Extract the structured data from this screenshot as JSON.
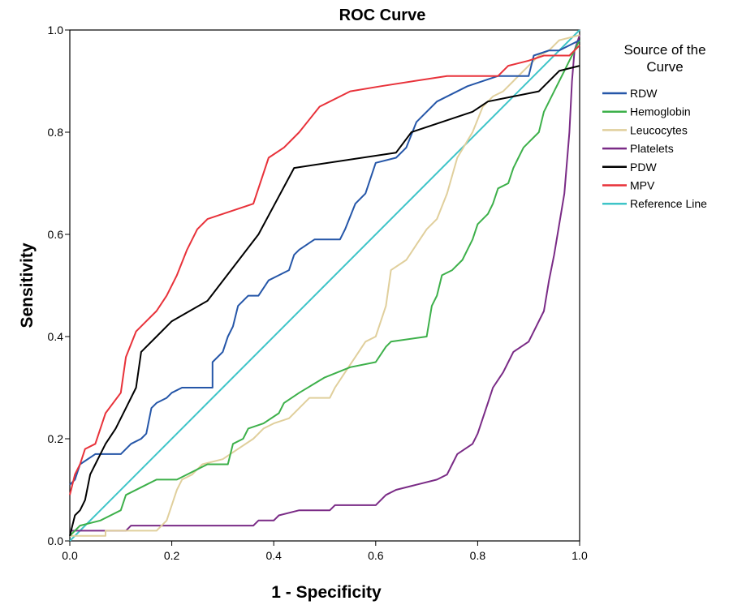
{
  "chart_data": {
    "type": "line",
    "title": "ROC Curve",
    "xlabel": "1 - Specificity",
    "ylabel": "Sensitivity",
    "xlim": [
      0,
      1
    ],
    "ylim": [
      0,
      1
    ],
    "xticks": [
      "0.0",
      "0.2",
      "0.4",
      "0.6",
      "0.8",
      "1.0"
    ],
    "yticks": [
      "0.0",
      "0.2",
      "0.4",
      "0.6",
      "0.8",
      "1.0"
    ],
    "grid": false,
    "legend": {
      "title_lines": [
        "Source of the",
        "Curve"
      ],
      "placement": "right"
    },
    "series": [
      {
        "name": "RDW",
        "color": "#2556a8",
        "points": [
          [
            0,
            0.11
          ],
          [
            0.01,
            0.12
          ],
          [
            0.02,
            0.15
          ],
          [
            0.05,
            0.17
          ],
          [
            0.1,
            0.17
          ],
          [
            0.12,
            0.19
          ],
          [
            0.14,
            0.2
          ],
          [
            0.15,
            0.21
          ],
          [
            0.16,
            0.26
          ],
          [
            0.17,
            0.27
          ],
          [
            0.19,
            0.28
          ],
          [
            0.2,
            0.29
          ],
          [
            0.22,
            0.3
          ],
          [
            0.28,
            0.3
          ],
          [
            0.28,
            0.35
          ],
          [
            0.3,
            0.37
          ],
          [
            0.31,
            0.4
          ],
          [
            0.32,
            0.42
          ],
          [
            0.33,
            0.46
          ],
          [
            0.35,
            0.48
          ],
          [
            0.37,
            0.48
          ],
          [
            0.39,
            0.51
          ],
          [
            0.41,
            0.52
          ],
          [
            0.43,
            0.53
          ],
          [
            0.44,
            0.56
          ],
          [
            0.45,
            0.57
          ],
          [
            0.48,
            0.59
          ],
          [
            0.53,
            0.59
          ],
          [
            0.54,
            0.61
          ],
          [
            0.56,
            0.66
          ],
          [
            0.58,
            0.68
          ],
          [
            0.6,
            0.74
          ],
          [
            0.64,
            0.75
          ],
          [
            0.66,
            0.77
          ],
          [
            0.68,
            0.82
          ],
          [
            0.72,
            0.86
          ],
          [
            0.78,
            0.89
          ],
          [
            0.84,
            0.91
          ],
          [
            0.9,
            0.91
          ],
          [
            0.91,
            0.95
          ],
          [
            0.94,
            0.96
          ],
          [
            0.96,
            0.96
          ],
          [
            0.98,
            0.97
          ],
          [
            1,
            0.98
          ]
        ]
      },
      {
        "name": "Hemoglobin",
        "color": "#3db04a",
        "points": [
          [
            0,
            0.01
          ],
          [
            0.02,
            0.03
          ],
          [
            0.06,
            0.04
          ],
          [
            0.1,
            0.06
          ],
          [
            0.11,
            0.09
          ],
          [
            0.15,
            0.11
          ],
          [
            0.17,
            0.12
          ],
          [
            0.21,
            0.12
          ],
          [
            0.23,
            0.13
          ],
          [
            0.27,
            0.15
          ],
          [
            0.31,
            0.15
          ],
          [
            0.32,
            0.19
          ],
          [
            0.34,
            0.2
          ],
          [
            0.35,
            0.22
          ],
          [
            0.38,
            0.23
          ],
          [
            0.41,
            0.25
          ],
          [
            0.42,
            0.27
          ],
          [
            0.45,
            0.29
          ],
          [
            0.5,
            0.32
          ],
          [
            0.55,
            0.34
          ],
          [
            0.6,
            0.35
          ],
          [
            0.62,
            0.38
          ],
          [
            0.63,
            0.39
          ],
          [
            0.7,
            0.4
          ],
          [
            0.71,
            0.46
          ],
          [
            0.72,
            0.48
          ],
          [
            0.73,
            0.52
          ],
          [
            0.75,
            0.53
          ],
          [
            0.77,
            0.55
          ],
          [
            0.78,
            0.57
          ],
          [
            0.79,
            0.59
          ],
          [
            0.8,
            0.62
          ],
          [
            0.82,
            0.64
          ],
          [
            0.83,
            0.66
          ],
          [
            0.84,
            0.69
          ],
          [
            0.86,
            0.7
          ],
          [
            0.87,
            0.73
          ],
          [
            0.88,
            0.75
          ],
          [
            0.89,
            0.77
          ],
          [
            0.9,
            0.78
          ],
          [
            0.92,
            0.8
          ],
          [
            0.93,
            0.84
          ],
          [
            0.94,
            0.86
          ],
          [
            0.95,
            0.88
          ],
          [
            0.96,
            0.9
          ],
          [
            0.97,
            0.92
          ],
          [
            0.98,
            0.94
          ],
          [
            0.99,
            0.96
          ],
          [
            1,
            0.98
          ]
        ]
      },
      {
        "name": "Leucocytes",
        "color": "#e0cf9c",
        "points": [
          [
            0,
            0.01
          ],
          [
            0.07,
            0.01
          ],
          [
            0.07,
            0.02
          ],
          [
            0.17,
            0.02
          ],
          [
            0.19,
            0.04
          ],
          [
            0.2,
            0.07
          ],
          [
            0.21,
            0.1
          ],
          [
            0.22,
            0.12
          ],
          [
            0.24,
            0.13
          ],
          [
            0.26,
            0.15
          ],
          [
            0.3,
            0.16
          ],
          [
            0.33,
            0.18
          ],
          [
            0.36,
            0.2
          ],
          [
            0.38,
            0.22
          ],
          [
            0.4,
            0.23
          ],
          [
            0.43,
            0.24
          ],
          [
            0.45,
            0.26
          ],
          [
            0.47,
            0.28
          ],
          [
            0.51,
            0.28
          ],
          [
            0.52,
            0.3
          ],
          [
            0.54,
            0.33
          ],
          [
            0.56,
            0.36
          ],
          [
            0.58,
            0.39
          ],
          [
            0.6,
            0.4
          ],
          [
            0.61,
            0.43
          ],
          [
            0.62,
            0.46
          ],
          [
            0.63,
            0.53
          ],
          [
            0.66,
            0.55
          ],
          [
            0.68,
            0.58
          ],
          [
            0.7,
            0.61
          ],
          [
            0.72,
            0.63
          ],
          [
            0.74,
            0.68
          ],
          [
            0.76,
            0.75
          ],
          [
            0.79,
            0.8
          ],
          [
            0.81,
            0.85
          ],
          [
            0.83,
            0.87
          ],
          [
            0.85,
            0.88
          ],
          [
            0.87,
            0.9
          ],
          [
            0.88,
            0.91
          ],
          [
            0.9,
            0.93
          ],
          [
            0.92,
            0.95
          ],
          [
            0.94,
            0.96
          ],
          [
            0.96,
            0.98
          ],
          [
            1,
            0.99
          ]
        ]
      },
      {
        "name": "Platelets",
        "color": "#7a2b86",
        "points": [
          [
            0,
            0.02
          ],
          [
            0.11,
            0.02
          ],
          [
            0.12,
            0.03
          ],
          [
            0.36,
            0.03
          ],
          [
            0.37,
            0.04
          ],
          [
            0.4,
            0.04
          ],
          [
            0.41,
            0.05
          ],
          [
            0.45,
            0.06
          ],
          [
            0.51,
            0.06
          ],
          [
            0.52,
            0.07
          ],
          [
            0.6,
            0.07
          ],
          [
            0.62,
            0.09
          ],
          [
            0.64,
            0.1
          ],
          [
            0.68,
            0.11
          ],
          [
            0.72,
            0.12
          ],
          [
            0.74,
            0.13
          ],
          [
            0.75,
            0.15
          ],
          [
            0.76,
            0.17
          ],
          [
            0.79,
            0.19
          ],
          [
            0.8,
            0.21
          ],
          [
            0.81,
            0.24
          ],
          [
            0.82,
            0.27
          ],
          [
            0.83,
            0.3
          ],
          [
            0.85,
            0.33
          ],
          [
            0.86,
            0.35
          ],
          [
            0.87,
            0.37
          ],
          [
            0.9,
            0.39
          ],
          [
            0.91,
            0.41
          ],
          [
            0.93,
            0.45
          ],
          [
            0.94,
            0.51
          ],
          [
            0.95,
            0.56
          ],
          [
            0.96,
            0.62
          ],
          [
            0.97,
            0.68
          ],
          [
            0.98,
            0.8
          ],
          [
            0.985,
            0.9
          ],
          [
            0.99,
            0.96
          ],
          [
            1,
            0.99
          ]
        ]
      },
      {
        "name": "PDW",
        "color": "#000000",
        "points": [
          [
            0,
            0.01
          ],
          [
            0.01,
            0.05
          ],
          [
            0.02,
            0.06
          ],
          [
            0.03,
            0.08
          ],
          [
            0.04,
            0.13
          ],
          [
            0.05,
            0.15
          ],
          [
            0.07,
            0.19
          ],
          [
            0.09,
            0.22
          ],
          [
            0.11,
            0.26
          ],
          [
            0.13,
            0.3
          ],
          [
            0.14,
            0.37
          ],
          [
            0.17,
            0.4
          ],
          [
            0.2,
            0.43
          ],
          [
            0.27,
            0.47
          ],
          [
            0.37,
            0.6
          ],
          [
            0.44,
            0.73
          ],
          [
            0.64,
            0.76
          ],
          [
            0.67,
            0.8
          ],
          [
            0.79,
            0.84
          ],
          [
            0.82,
            0.86
          ],
          [
            0.87,
            0.87
          ],
          [
            0.92,
            0.88
          ],
          [
            0.96,
            0.92
          ],
          [
            1,
            0.93
          ]
        ]
      },
      {
        "name": "MPV",
        "color": "#e8323a",
        "points": [
          [
            0,
            0.09
          ],
          [
            0.01,
            0.13
          ],
          [
            0.02,
            0.15
          ],
          [
            0.03,
            0.18
          ],
          [
            0.05,
            0.19
          ],
          [
            0.07,
            0.25
          ],
          [
            0.1,
            0.29
          ],
          [
            0.11,
            0.36
          ],
          [
            0.13,
            0.41
          ],
          [
            0.15,
            0.43
          ],
          [
            0.17,
            0.45
          ],
          [
            0.19,
            0.48
          ],
          [
            0.21,
            0.52
          ],
          [
            0.23,
            0.57
          ],
          [
            0.25,
            0.61
          ],
          [
            0.27,
            0.63
          ],
          [
            0.36,
            0.66
          ],
          [
            0.39,
            0.75
          ],
          [
            0.42,
            0.77
          ],
          [
            0.45,
            0.8
          ],
          [
            0.49,
            0.85
          ],
          [
            0.55,
            0.88
          ],
          [
            0.61,
            0.89
          ],
          [
            0.74,
            0.91
          ],
          [
            0.84,
            0.91
          ],
          [
            0.86,
            0.93
          ],
          [
            0.9,
            0.94
          ],
          [
            0.93,
            0.95
          ],
          [
            0.98,
            0.95
          ],
          [
            1,
            0.97
          ]
        ]
      },
      {
        "name": "Reference Line",
        "color": "#3ec4c8",
        "points": [
          [
            0,
            0
          ],
          [
            1,
            1
          ]
        ]
      }
    ]
  }
}
